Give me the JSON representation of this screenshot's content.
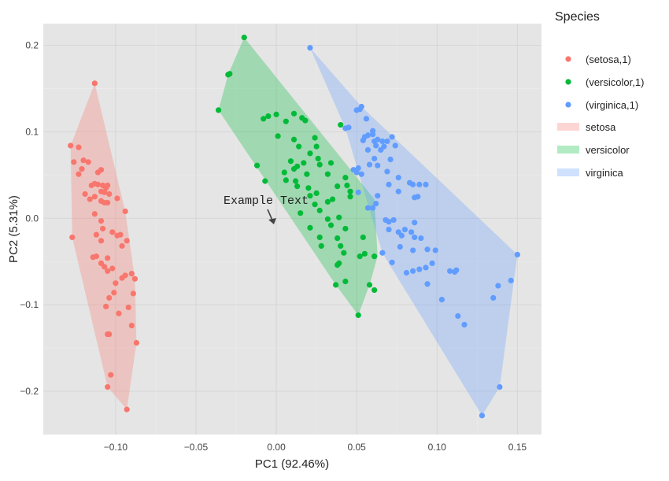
{
  "chart_data": {
    "type": "scatter",
    "xlabel": "PC1 (92.46%)",
    "ylabel": "PC2 (5.31%)",
    "xlim": [
      -0.145,
      0.165
    ],
    "ylim": [
      -0.25,
      0.225
    ],
    "x_ticks": [
      -0.1,
      -0.05,
      0.0,
      0.05,
      0.1,
      0.15
    ],
    "x_tick_labels": [
      "−0.10",
      "−0.05",
      "0.00",
      "0.05",
      "0.10",
      "0.15"
    ],
    "y_ticks": [
      -0.2,
      -0.1,
      0.0,
      0.1,
      0.2
    ],
    "y_tick_labels": [
      "−0.2",
      "−0.1",
      "0.0",
      "0.1",
      "0.2"
    ],
    "grid": true,
    "legend_title": "Species",
    "legend_position": "right",
    "annotation": {
      "text": "Example Text",
      "x": 0.0,
      "y": 0.0,
      "arrow": true
    },
    "series": [
      {
        "name": "(setosa,1)",
        "hull_name": "setosa",
        "color": "#f8766d",
        "points": [
          [
            -0.113,
            0.156
          ],
          [
            -0.128,
            0.084
          ],
          [
            -0.123,
            0.082
          ],
          [
            -0.12,
            0.067
          ],
          [
            -0.126,
            0.065
          ],
          [
            -0.117,
            0.065
          ],
          [
            -0.121,
            0.057
          ],
          [
            -0.109,
            0.056
          ],
          [
            -0.111,
            0.053
          ],
          [
            -0.123,
            0.051
          ],
          [
            -0.113,
            0.04
          ],
          [
            -0.111,
            0.039
          ],
          [
            -0.115,
            0.038
          ],
          [
            -0.108,
            0.038
          ],
          [
            -0.105,
            0.038
          ],
          [
            -0.106,
            0.035
          ],
          [
            -0.109,
            0.031
          ],
          [
            -0.107,
            0.03
          ],
          [
            -0.119,
            0.028
          ],
          [
            -0.104,
            0.028
          ],
          [
            -0.113,
            0.025
          ],
          [
            -0.116,
            0.022
          ],
          [
            -0.109,
            0.02
          ],
          [
            -0.107,
            0.018
          ],
          [
            -0.099,
            0.023
          ],
          [
            -0.105,
            0.018
          ],
          [
            -0.094,
            0.008
          ],
          [
            -0.113,
            0.005
          ],
          [
            -0.109,
            -0.003
          ],
          [
            -0.108,
            -0.012
          ],
          [
            -0.112,
            -0.019
          ],
          [
            -0.102,
            -0.016
          ],
          [
            -0.097,
            -0.019
          ],
          [
            -0.099,
            -0.02
          ],
          [
            -0.109,
            -0.026
          ],
          [
            -0.093,
            -0.026
          ],
          [
            -0.127,
            -0.022
          ],
          [
            -0.096,
            -0.032
          ],
          [
            -0.112,
            -0.044
          ],
          [
            -0.114,
            -0.045
          ],
          [
            -0.105,
            -0.046
          ],
          [
            -0.109,
            -0.052
          ],
          [
            -0.107,
            -0.056
          ],
          [
            -0.102,
            -0.058
          ],
          [
            -0.105,
            -0.061
          ],
          [
            -0.094,
            -0.066
          ],
          [
            -0.09,
            -0.064
          ],
          [
            -0.096,
            -0.069
          ],
          [
            -0.088,
            -0.07
          ],
          [
            -0.1,
            -0.075
          ],
          [
            -0.101,
            -0.086
          ],
          [
            -0.089,
            -0.087
          ],
          [
            -0.104,
            -0.092
          ],
          [
            -0.106,
            -0.102
          ],
          [
            -0.092,
            -0.103
          ],
          [
            -0.098,
            -0.11
          ],
          [
            -0.09,
            -0.124
          ],
          [
            -0.105,
            -0.134
          ],
          [
            -0.104,
            -0.134
          ],
          [
            -0.087,
            -0.144
          ],
          [
            -0.103,
            -0.181
          ],
          [
            -0.105,
            -0.195
          ],
          [
            -0.093,
            -0.221
          ]
        ],
        "hull": [
          [
            -0.113,
            0.156
          ],
          [
            -0.128,
            0.084
          ],
          [
            -0.127,
            -0.022
          ],
          [
            -0.105,
            -0.195
          ],
          [
            -0.093,
            -0.221
          ],
          [
            -0.087,
            -0.144
          ],
          [
            -0.088,
            -0.07
          ],
          [
            -0.094,
            0.008
          ]
        ]
      },
      {
        "name": "(versicolor,1)",
        "hull_name": "versicolor",
        "color": "#00ba38",
        "points": [
          [
            -0.02,
            0.209
          ],
          [
            -0.03,
            0.166
          ],
          [
            -0.029,
            0.167
          ],
          [
            -0.036,
            0.125
          ],
          [
            0.011,
            0.121
          ],
          [
            0.0,
            0.12
          ],
          [
            -0.005,
            0.118
          ],
          [
            -0.008,
            0.115
          ],
          [
            0.016,
            0.116
          ],
          [
            0.006,
            0.112
          ],
          [
            0.018,
            0.113
          ],
          [
            0.04,
            0.108
          ],
          [
            0.001,
            0.095
          ],
          [
            0.011,
            0.091
          ],
          [
            0.024,
            0.093
          ],
          [
            0.014,
            0.083
          ],
          [
            0.025,
            0.083
          ],
          [
            0.021,
            0.075
          ],
          [
            0.009,
            0.066
          ],
          [
            0.013,
            0.06
          ],
          [
            0.027,
            0.062
          ],
          [
            0.017,
            0.064
          ],
          [
            0.026,
            0.069
          ],
          [
            0.034,
            0.064
          ],
          [
            0.011,
            0.057
          ],
          [
            0.005,
            0.053
          ],
          [
            -0.012,
            0.061
          ],
          [
            0.019,
            0.051
          ],
          [
            0.032,
            0.051
          ],
          [
            0.043,
            0.047
          ],
          [
            0.012,
            0.043
          ],
          [
            0.006,
            0.044
          ],
          [
            -0.007,
            0.043
          ],
          [
            0.013,
            0.037
          ],
          [
            0.02,
            0.035
          ],
          [
            0.038,
            0.037
          ],
          [
            0.044,
            0.038
          ],
          [
            0.046,
            0.031
          ],
          [
            0.035,
            0.022
          ],
          [
            0.032,
            0.019
          ],
          [
            0.024,
            0.016
          ],
          [
            0.025,
            0.029
          ],
          [
            0.021,
            0.026
          ],
          [
            0.046,
            0.025
          ],
          [
            0.027,
            0.009
          ],
          [
            0.015,
            0.006
          ],
          [
            0.039,
            0.001
          ],
          [
            0.032,
            -0.001
          ],
          [
            0.034,
            -0.008
          ],
          [
            0.021,
            -0.011
          ],
          [
            0.043,
            -0.012
          ],
          [
            0.027,
            -0.022
          ],
          [
            0.038,
            -0.023
          ],
          [
            0.054,
            -0.022
          ],
          [
            0.028,
            -0.032
          ],
          [
            0.04,
            -0.032
          ],
          [
            0.055,
            -0.041
          ],
          [
            0.042,
            -0.04
          ],
          [
            0.052,
            -0.044
          ],
          [
            0.061,
            -0.044
          ],
          [
            0.039,
            -0.052
          ],
          [
            0.038,
            -0.054
          ],
          [
            0.043,
            -0.073
          ],
          [
            0.058,
            -0.077
          ],
          [
            0.037,
            -0.077
          ],
          [
            0.061,
            -0.083
          ],
          [
            0.051,
            -0.112
          ]
        ],
        "hull": [
          [
            -0.02,
            0.209
          ],
          [
            0.061,
            0.022
          ],
          [
            0.063,
            -0.044
          ],
          [
            0.058,
            -0.077
          ],
          [
            0.051,
            -0.112
          ],
          [
            0.037,
            -0.077
          ],
          [
            -0.036,
            0.125
          ],
          [
            -0.03,
            0.166
          ]
        ]
      },
      {
        "name": "(virginica,1)",
        "hull_name": "virginica",
        "color": "#619cff",
        "points": [
          [
            0.021,
            0.197
          ],
          [
            0.053,
            0.129
          ],
          [
            0.05,
            0.125
          ],
          [
            0.052,
            0.126
          ],
          [
            0.056,
            0.115
          ],
          [
            0.06,
            0.101
          ],
          [
            0.045,
            0.105
          ],
          [
            0.043,
            0.104
          ],
          [
            0.057,
            0.096
          ],
          [
            0.055,
            0.094
          ],
          [
            0.06,
            0.097
          ],
          [
            0.054,
            0.09
          ],
          [
            0.061,
            0.089
          ],
          [
            0.063,
            0.091
          ],
          [
            0.072,
            0.094
          ],
          [
            0.066,
            0.089
          ],
          [
            0.069,
            0.089
          ],
          [
            0.067,
            0.083
          ],
          [
            0.074,
            0.084
          ],
          [
            0.057,
            0.079
          ],
          [
            0.062,
            0.084
          ],
          [
            0.065,
            0.079
          ],
          [
            0.061,
            0.069
          ],
          [
            0.071,
            0.068
          ],
          [
            0.058,
            0.062
          ],
          [
            0.063,
            0.061
          ],
          [
            0.051,
            0.058
          ],
          [
            0.048,
            0.056
          ],
          [
            0.05,
            0.053
          ],
          [
            0.053,
            0.051
          ],
          [
            0.069,
            0.054
          ],
          [
            0.076,
            0.047
          ],
          [
            0.07,
            0.039
          ],
          [
            0.076,
            0.031
          ],
          [
            0.085,
            0.039
          ],
          [
            0.083,
            0.041
          ],
          [
            0.089,
            0.039
          ],
          [
            0.093,
            0.039
          ],
          [
            0.051,
            0.03
          ],
          [
            0.063,
            0.026
          ],
          [
            0.086,
            0.024
          ],
          [
            0.088,
            0.025
          ],
          [
            0.062,
            0.017
          ],
          [
            0.06,
            0.012
          ],
          [
            0.057,
            0.012
          ],
          [
            0.068,
            -0.002
          ],
          [
            0.07,
            -0.004
          ],
          [
            0.073,
            -0.002
          ],
          [
            0.086,
            -0.005
          ],
          [
            0.07,
            -0.013
          ],
          [
            0.08,
            -0.013
          ],
          [
            0.076,
            -0.016
          ],
          [
            0.084,
            -0.016
          ],
          [
            0.078,
            -0.02
          ],
          [
            0.086,
            -0.022
          ],
          [
            0.09,
            -0.023
          ],
          [
            0.066,
            -0.04
          ],
          [
            0.077,
            -0.033
          ],
          [
            0.085,
            -0.037
          ],
          [
            0.094,
            -0.036
          ],
          [
            0.099,
            -0.037
          ],
          [
            0.072,
            -0.051
          ],
          [
            0.081,
            -0.063
          ],
          [
            0.085,
            -0.061
          ],
          [
            0.089,
            -0.059
          ],
          [
            0.093,
            -0.057
          ],
          [
            0.097,
            -0.052
          ],
          [
            0.108,
            -0.061
          ],
          [
            0.111,
            -0.062
          ],
          [
            0.112,
            -0.06
          ],
          [
            0.094,
            -0.076
          ],
          [
            0.103,
            -0.094
          ],
          [
            0.138,
            -0.078
          ],
          [
            0.135,
            -0.092
          ],
          [
            0.146,
            -0.072
          ],
          [
            0.15,
            -0.042
          ],
          [
            0.139,
            -0.195
          ],
          [
            0.113,
            -0.113
          ],
          [
            0.117,
            -0.123
          ],
          [
            0.128,
            -0.228
          ]
        ],
        "hull": [
          [
            0.021,
            0.197
          ],
          [
            0.053,
            0.129
          ],
          [
            0.15,
            -0.042
          ],
          [
            0.139,
            -0.195
          ],
          [
            0.128,
            -0.228
          ],
          [
            0.066,
            -0.04
          ],
          [
            0.043,
            0.104
          ]
        ]
      }
    ]
  }
}
